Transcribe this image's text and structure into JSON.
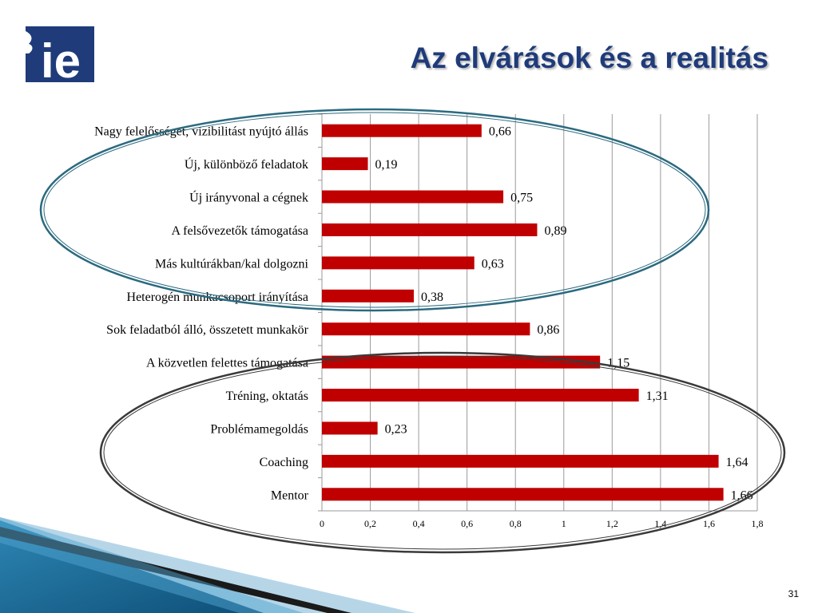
{
  "slide": {
    "title": "Az elvárások és a realitás",
    "page_number": "31",
    "logo_text": "ie",
    "colors": {
      "title": "#1f3b7a",
      "bar": "#c00000",
      "logo": "#1f3b7a",
      "ellipse_top": "#2b6a7f",
      "ellipse_bottom": "#3a3a3a"
    }
  },
  "chart_data": {
    "type": "bar",
    "orientation": "horizontal",
    "categories": [
      "Nagy felelősséget, vizibilitást nyújtó állás",
      "Új, különböző feladatok",
      "Új irányvonal a cégnek",
      "A felsővezetők támogatása",
      "Más kultúrákban/kal dolgozni",
      "Heterogén munkacsoport irányítása",
      "Sok feladatból álló, összetett munkakör",
      "A közvetlen felettes támogatása",
      "Tréning, oktatás",
      "Problémamegoldás",
      "Coaching",
      "Mentor"
    ],
    "values": [
      0.66,
      0.19,
      0.75,
      0.89,
      0.63,
      0.38,
      0.86,
      1.15,
      1.31,
      0.23,
      1.64,
      1.66
    ],
    "value_labels": [
      "0,66",
      "0,19",
      "0,75",
      "0,89",
      "0,63",
      "0,38",
      "0,86",
      "1,15",
      "1,31",
      "0,23",
      "1,64",
      "1,66"
    ],
    "xlim": [
      0,
      1.8
    ],
    "xticks": [
      0,
      0.2,
      0.4,
      0.6,
      0.8,
      1,
      1.2,
      1.4,
      1.6,
      1.8
    ],
    "xtick_labels": [
      "0",
      "0,2",
      "0,4",
      "0,6",
      "0,8",
      "1",
      "1,2",
      "1,4",
      "1,6",
      "1,8"
    ],
    "grid": "vertical",
    "title": "",
    "xlabel": "",
    "ylabel": "",
    "highlight_groups": [
      {
        "name": "top-ellipse",
        "categories": [
          0,
          5
        ]
      },
      {
        "name": "bottom-ellipse",
        "categories": [
          7,
          11
        ]
      }
    ]
  }
}
